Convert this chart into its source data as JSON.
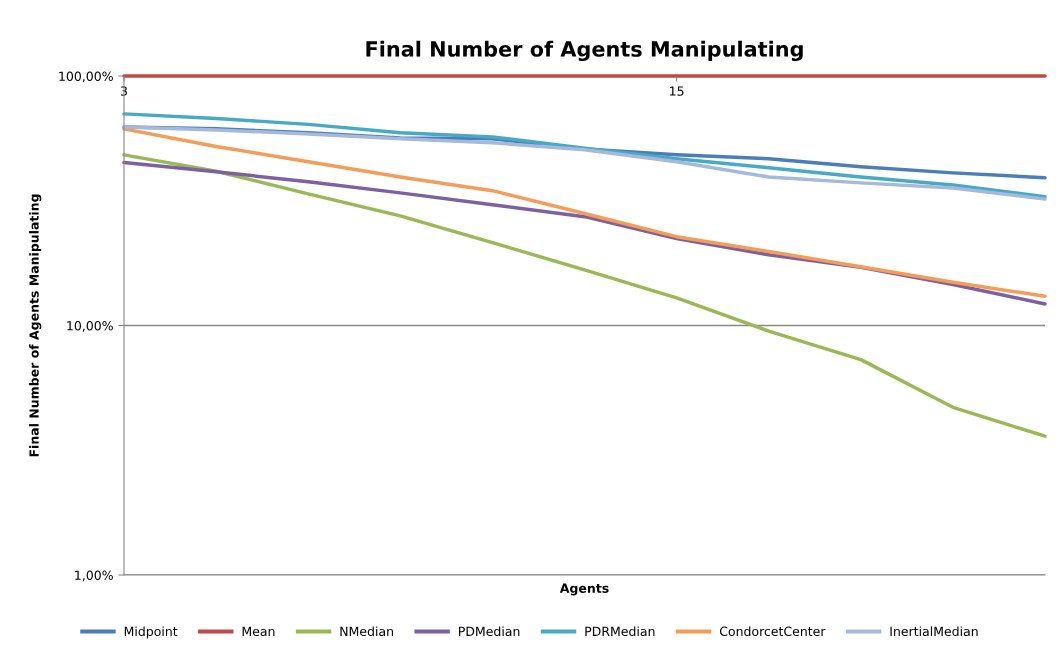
{
  "chart_data": {
    "type": "line",
    "title": "Final Number of Agents Manipulating",
    "xlabel": "Agents",
    "ylabel": "Final Number of Agents Manipulating",
    "x": [
      3,
      5,
      7,
      9,
      11,
      13,
      15,
      17,
      19,
      21,
      23
    ],
    "series": [
      {
        "name": "Midpoint",
        "color": "#4a7ebb",
        "values": [
          62.5,
          61.4,
          59.2,
          56.5,
          56.0,
          51.0,
          48.3,
          46.6,
          43.3,
          40.9,
          39.1
        ]
      },
      {
        "name": "Mean",
        "color": "#be4b48",
        "values": [
          100,
          100,
          100,
          100,
          100,
          100,
          100,
          100,
          100,
          100,
          100
        ]
      },
      {
        "name": "NMedian",
        "color": "#98b954",
        "values": [
          48.3,
          41.5,
          33.7,
          27.5,
          21.5,
          16.7,
          12.9,
          9.5,
          7.3,
          4.7,
          3.6
        ]
      },
      {
        "name": "PDMedian",
        "color": "#7d60a0",
        "values": [
          45.0,
          41.3,
          37.7,
          34.0,
          30.5,
          27.3,
          22.3,
          19.2,
          17.1,
          14.6,
          12.2
        ]
      },
      {
        "name": "PDRMedian",
        "color": "#46aac5",
        "values": [
          70.5,
          67.6,
          64.0,
          59.2,
          57.0,
          51.3,
          46.6,
          42.9,
          39.4,
          36.6,
          32.8
        ]
      },
      {
        "name": "CondorcetCenter",
        "color": "#f59d56",
        "values": [
          61.4,
          52.2,
          45.3,
          39.4,
          34.7,
          28.1,
          22.7,
          19.8,
          17.2,
          14.9,
          13.1
        ]
      },
      {
        "name": "InertialMedian",
        "color": "#a5b9db",
        "values": [
          62.5,
          60.8,
          58.6,
          56.0,
          54.0,
          50.6,
          45.3,
          39.4,
          37.3,
          35.6,
          32.1
        ]
      }
    ],
    "log": "y",
    "xlim": [
      3,
      23
    ],
    "xticks": [
      3,
      15
    ],
    "ylim": [
      1,
      100
    ],
    "yticks": [
      {
        "value": 1,
        "label": "1,00%"
      },
      {
        "value": 10,
        "label": "10,00%"
      },
      {
        "value": 100,
        "label": "100,00%"
      }
    ],
    "grid": "y",
    "legend": "bottom",
    "marker": "none",
    "line_style": "solid"
  }
}
